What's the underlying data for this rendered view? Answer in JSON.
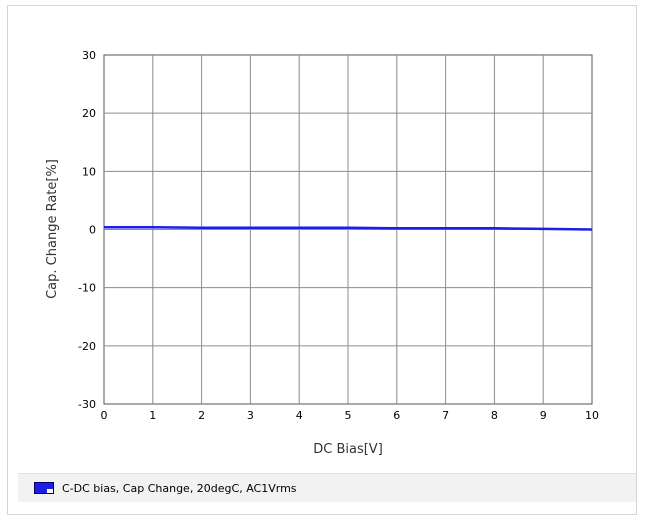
{
  "chart_data": {
    "type": "line",
    "title": "",
    "xlabel": "DC Bias[V]",
    "ylabel": "Cap. Change Rate[%]",
    "xlim": [
      0,
      10
    ],
    "ylim": [
      -30,
      30
    ],
    "x_ticks": [
      "0",
      "1",
      "2",
      "3",
      "4",
      "5",
      "6",
      "7",
      "8",
      "9",
      "10"
    ],
    "y_ticks": [
      "30",
      "20",
      "10",
      "0",
      "-10",
      "-20",
      "-30"
    ],
    "grid": true,
    "legend_position": "bottom",
    "series": [
      {
        "name": "C-DC bias, Cap Change, 20degC, AC1Vrms",
        "color": "#1e1ee6",
        "x": [
          0,
          1,
          2,
          3,
          4,
          5,
          6,
          7,
          8,
          9,
          10
        ],
        "y": [
          0.4,
          0.4,
          0.3,
          0.3,
          0.3,
          0.3,
          0.2,
          0.2,
          0.2,
          0.1,
          0.0
        ]
      }
    ]
  }
}
